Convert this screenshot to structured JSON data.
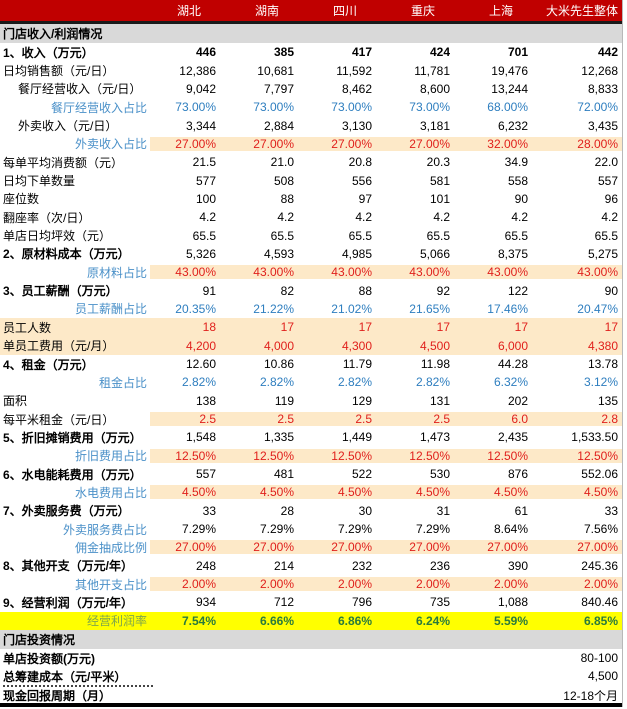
{
  "header": {
    "columns": [
      "湖北",
      "湖南",
      "四川",
      "重庆",
      "上海",
      "大米先生整体"
    ]
  },
  "section1": {
    "title": "门店收入/利润情况"
  },
  "rows": [
    {
      "label": "1、收入（万元）",
      "style": "bold",
      "values": [
        "446",
        "385",
        "417",
        "424",
        "701",
        "442"
      ],
      "vstyle": "bold"
    },
    {
      "label": "日均销售额（元/日）",
      "style": "",
      "values": [
        "12,386",
        "10,681",
        "11,592",
        "11,781",
        "19,476",
        "12,268"
      ],
      "vstyle": ""
    },
    {
      "label": "餐厅经营收入（元/日）",
      "style": "sub",
      "values": [
        "9,042",
        "7,797",
        "8,462",
        "8,600",
        "13,244",
        "8,833"
      ],
      "vstyle": ""
    },
    {
      "label": "餐厅经营收入占比",
      "style": "ratio",
      "values": [
        "73.00%",
        "73.00%",
        "73.00%",
        "73.00%",
        "68.00%",
        "72.00%"
      ],
      "vstyle": "blue"
    },
    {
      "label": "外卖收入（元/日）",
      "style": "sub",
      "values": [
        "3,344",
        "2,884",
        "3,130",
        "3,181",
        "6,232",
        "3,435"
      ],
      "vstyle": ""
    },
    {
      "label": "外卖收入占比",
      "style": "ratio",
      "values": [
        "27.00%",
        "27.00%",
        "27.00%",
        "27.00%",
        "32.00%",
        "28.00%"
      ],
      "vstyle": "red",
      "hl": true
    },
    {
      "label": "每单平均消费额（元）",
      "style": "",
      "values": [
        "21.5",
        "21.0",
        "20.8",
        "20.3",
        "34.9",
        "22.0"
      ],
      "vstyle": ""
    },
    {
      "label": "日均下单数量",
      "style": "",
      "values": [
        "577",
        "508",
        "556",
        "581",
        "558",
        "557"
      ],
      "vstyle": ""
    },
    {
      "label": "座位数",
      "style": "",
      "values": [
        "100",
        "88",
        "97",
        "101",
        "90",
        "96"
      ],
      "vstyle": ""
    },
    {
      "label": "翻座率（次/日）",
      "style": "",
      "values": [
        "4.2",
        "4.2",
        "4.2",
        "4.2",
        "4.2",
        "4.2"
      ],
      "vstyle": ""
    },
    {
      "label": "单店日均坪效（元）",
      "style": "",
      "values": [
        "65.5",
        "65.5",
        "65.5",
        "65.5",
        "65.5",
        "65.5"
      ],
      "vstyle": ""
    },
    {
      "label": "2、原材料成本（万元）",
      "style": "bold",
      "values": [
        "5,326",
        "4,593",
        "4,985",
        "5,066",
        "8,375",
        "5,275"
      ],
      "vstyle": ""
    },
    {
      "label": "原材料占比",
      "style": "ratio",
      "values": [
        "43.00%",
        "43.00%",
        "43.00%",
        "43.00%",
        "43.00%",
        "43.00%"
      ],
      "vstyle": "red",
      "hl": true
    },
    {
      "label": "3、员工薪酬（万元）",
      "style": "bold",
      "values": [
        "91",
        "82",
        "88",
        "92",
        "122",
        "90"
      ],
      "vstyle": ""
    },
    {
      "label": "员工薪酬占比",
      "style": "ratio",
      "values": [
        "20.35%",
        "21.22%",
        "21.02%",
        "21.65%",
        "17.46%",
        "20.47%"
      ],
      "vstyle": "blue"
    },
    {
      "label": "员工人数",
      "style": "",
      "values": [
        "18",
        "17",
        "17",
        "17",
        "17",
        "17"
      ],
      "vstyle": "red",
      "hlfull": true
    },
    {
      "label": "单员工费用（元/月）",
      "style": "",
      "values": [
        "4,200",
        "4,000",
        "4,300",
        "4,500",
        "6,000",
        "4,380"
      ],
      "vstyle": "red",
      "hlfull": true
    },
    {
      "label": "4、租金（万元）",
      "style": "bold",
      "values": [
        "12.60",
        "10.86",
        "11.79",
        "11.98",
        "44.28",
        "13.78"
      ],
      "vstyle": ""
    },
    {
      "label": "租金占比",
      "style": "ratio",
      "values": [
        "2.82%",
        "2.82%",
        "2.82%",
        "2.82%",
        "6.32%",
        "3.12%"
      ],
      "vstyle": "blue"
    },
    {
      "label": "面积",
      "style": "",
      "values": [
        "138",
        "119",
        "129",
        "131",
        "202",
        "135"
      ],
      "vstyle": ""
    },
    {
      "label": "每平米租金（元/日）",
      "style": "",
      "values": [
        "2.5",
        "2.5",
        "2.5",
        "2.5",
        "6.0",
        "2.8"
      ],
      "vstyle": "red",
      "hl": true
    },
    {
      "label": "5、折旧摊销费用（万元）",
      "style": "bold",
      "values": [
        "1,548",
        "1,335",
        "1,449",
        "1,473",
        "2,435",
        "1,533.50"
      ],
      "vstyle": ""
    },
    {
      "label": "折旧费用占比",
      "style": "ratio",
      "values": [
        "12.50%",
        "12.50%",
        "12.50%",
        "12.50%",
        "12.50%",
        "12.50%"
      ],
      "vstyle": "red",
      "hl": true
    },
    {
      "label": "6、水电能耗费用（万元）",
      "style": "bold",
      "values": [
        "557",
        "481",
        "522",
        "530",
        "876",
        "552.06"
      ],
      "vstyle": ""
    },
    {
      "label": "水电费用占比",
      "style": "ratio",
      "values": [
        "4.50%",
        "4.50%",
        "4.50%",
        "4.50%",
        "4.50%",
        "4.50%"
      ],
      "vstyle": "red",
      "hl": true
    },
    {
      "label": "7、外卖服务费（万元）",
      "style": "bold",
      "values": [
        "33",
        "28",
        "30",
        "31",
        "61",
        "33"
      ],
      "vstyle": ""
    },
    {
      "label": "外卖服务费占比",
      "style": "ratio",
      "values": [
        "7.29%",
        "7.29%",
        "7.29%",
        "7.29%",
        "8.64%",
        "7.56%"
      ],
      "vstyle": ""
    },
    {
      "label": "佣金抽成比例",
      "style": "ratio",
      "values": [
        "27.00%",
        "27.00%",
        "27.00%",
        "27.00%",
        "27.00%",
        "27.00%"
      ],
      "vstyle": "red",
      "hl": true
    },
    {
      "label": "8、其他开支（万元/年）",
      "style": "bold",
      "values": [
        "248",
        "214",
        "232",
        "236",
        "390",
        "245.36"
      ],
      "vstyle": ""
    },
    {
      "label": "其他开支占比",
      "style": "ratio",
      "values": [
        "2.00%",
        "2.00%",
        "2.00%",
        "2.00%",
        "2.00%",
        "2.00%"
      ],
      "vstyle": "red",
      "hl": true
    },
    {
      "label": "9、经营利润（万元/年）",
      "style": "bold",
      "values": [
        "934",
        "712",
        "796",
        "735",
        "1,088",
        "840.46"
      ],
      "vstyle": ""
    },
    {
      "label": "经营利润率",
      "style": "ratio",
      "values": [
        "7.54%",
        "6.66%",
        "6.86%",
        "6.24%",
        "5.59%",
        "6.85%"
      ],
      "vstyle": "green",
      "yellow": true
    }
  ],
  "section2": {
    "title": "门店投资情况"
  },
  "investment": [
    {
      "label": "单店投资额(万元)",
      "value": "80-100"
    },
    {
      "label": "总筹建成本（元/平米）",
      "value": "4,500"
    },
    {
      "label": "现金回报周期（月）",
      "value": "12-18个月"
    }
  ]
}
